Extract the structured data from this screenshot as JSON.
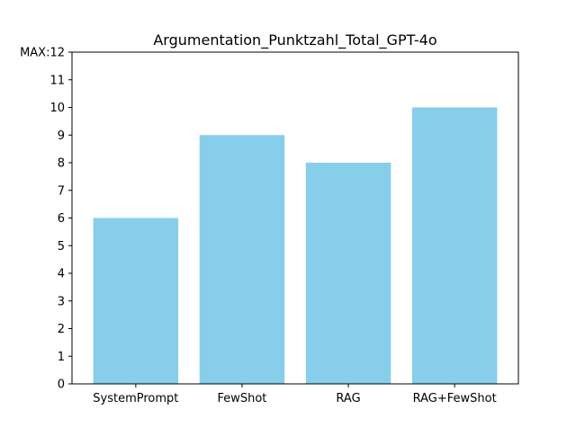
{
  "chart_data": {
    "type": "bar",
    "title": "Argumentation_Punktzahl_Total_GPT-4o",
    "xlabel": "",
    "ylabel": "",
    "categories": [
      "SystemPrompt",
      "FewShot",
      "RAG",
      "RAG+FewShot"
    ],
    "values": [
      6,
      9,
      8,
      10
    ],
    "ylim": [
      0,
      12
    ],
    "yticks": [
      "0",
      "1",
      "2",
      "3",
      "4",
      "5",
      "6",
      "7",
      "8",
      "9",
      "10",
      "11",
      "MAX:12"
    ],
    "grid": false,
    "legend": "none",
    "bar_color": "#87ceeb"
  }
}
